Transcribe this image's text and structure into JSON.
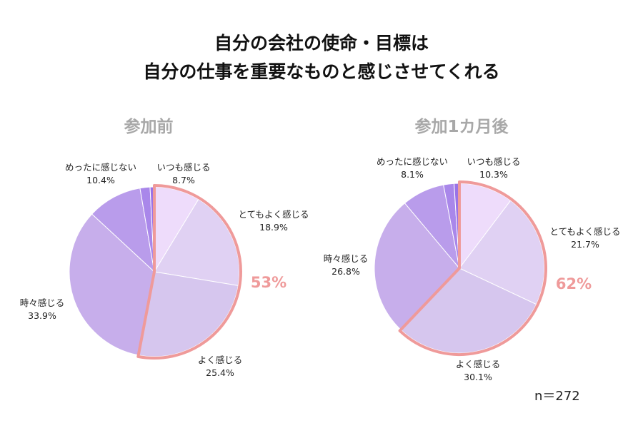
{
  "title_lines": [
    "自分の会社の使命・目標は",
    "自分の仕事を重要なものと感じさせてくれる"
  ],
  "sample_size": "n＝272",
  "colors": {
    "highlight_outline": "#ef9a9a",
    "slices": [
      "#eedcfb",
      "#e0d1f3",
      "#d6c6ee",
      "#c7aeeb",
      "#b99ceb",
      "#a987ea",
      "#9a73e6"
    ]
  },
  "chart_data": [
    {
      "type": "pie",
      "title": "参加前",
      "highlight_text": "53%",
      "slices": [
        {
          "label": "いつも感じる",
          "value": 8.7,
          "value_text": "8.7%"
        },
        {
          "label": "とてもよく感じる",
          "value": 18.9,
          "value_text": "18.9%"
        },
        {
          "label": "よく感じる",
          "value": 25.4,
          "value_text": "25.4%"
        },
        {
          "label": "時々感じる",
          "value": 33.9,
          "value_text": "33.9%"
        },
        {
          "label": "めったに感じない",
          "value": 10.4,
          "value_text": "10.4%"
        },
        {
          "label": "",
          "value": 1.9
        },
        {
          "label": "",
          "value": 0.8
        }
      ],
      "highlight_slices": [
        0,
        1,
        2
      ]
    },
    {
      "type": "pie",
      "title": "参加1カ月後",
      "highlight_text": "62%",
      "slices": [
        {
          "label": "いつも感じる",
          "value": 10.3,
          "value_text": "10.3%"
        },
        {
          "label": "とてもよく感じる",
          "value": 21.7,
          "value_text": "21.7%"
        },
        {
          "label": "よく感じる",
          "value": 30.1,
          "value_text": "30.1%"
        },
        {
          "label": "時々感じる",
          "value": 26.8,
          "value_text": "26.8%"
        },
        {
          "label": "めったに感じない",
          "value": 8.1,
          "value_text": "8.1%"
        },
        {
          "label": "",
          "value": 2.0
        },
        {
          "label": "",
          "value": 1.0
        }
      ],
      "highlight_slices": [
        0,
        1,
        2
      ]
    }
  ]
}
